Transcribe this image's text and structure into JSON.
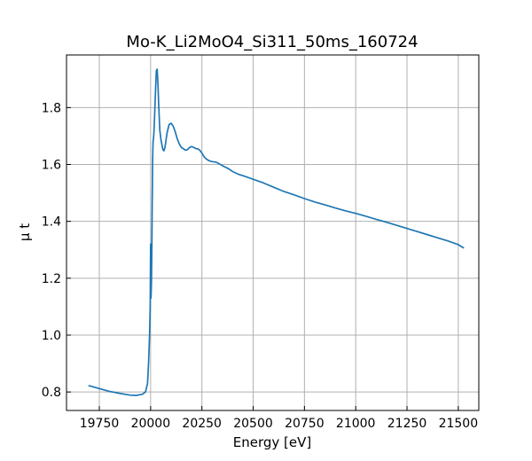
{
  "chart_data": {
    "type": "line",
    "title": "Mo-K_Li2MoO4_Si311_50ms_160724",
    "xlabel": "Energy [eV]",
    "ylabel": "μ t",
    "xlim": [
      19590,
      21600
    ],
    "ylim": [
      0.735,
      1.985
    ],
    "x_ticks": [
      19750,
      20000,
      20250,
      20500,
      20750,
      21000,
      21250,
      21500
    ],
    "x_tick_labels": [
      "19750",
      "20000",
      "20250",
      "20500",
      "20750",
      "21000",
      "21250",
      "21500"
    ],
    "y_ticks": [
      0.8,
      1.0,
      1.2,
      1.4,
      1.6,
      1.8
    ],
    "y_tick_labels": [
      "0.8",
      "1.0",
      "1.2",
      "1.4",
      "1.6",
      "1.8"
    ],
    "grid": true,
    "line_color": "#1f77b4",
    "series": [
      {
        "x": [
          19700,
          19750,
          19800,
          19850,
          19900,
          19930,
          19960,
          19975,
          19985,
          19990,
          19995,
          19998,
          20000,
          20002,
          20004,
          20006,
          20008,
          20010,
          20012,
          20014,
          20016,
          20018,
          20020,
          20024,
          20028,
          20032,
          20036,
          20040,
          20045,
          20050,
          20055,
          20060,
          20065,
          20070,
          20075,
          20080,
          20090,
          20100,
          20110,
          20120,
          20130,
          20140,
          20150,
          20160,
          20170,
          20180,
          20190,
          20200,
          20210,
          20220,
          20230,
          20240,
          20250,
          20260,
          20270,
          20280,
          20290,
          20300,
          20320,
          20340,
          20360,
          20380,
          20400,
          20430,
          20460,
          20500,
          20550,
          20600,
          20650,
          20700,
          20750,
          20800,
          20850,
          20900,
          20950,
          21000,
          21050,
          21100,
          21150,
          21200,
          21250,
          21300,
          21350,
          21400,
          21450,
          21500,
          21525
        ],
        "y": [
          0.822,
          0.812,
          0.802,
          0.795,
          0.789,
          0.788,
          0.792,
          0.8,
          0.83,
          0.9,
          1.0,
          1.1,
          1.32,
          1.13,
          1.18,
          1.3,
          1.48,
          1.62,
          1.68,
          1.69,
          1.71,
          1.74,
          1.78,
          1.86,
          1.93,
          1.935,
          1.88,
          1.8,
          1.72,
          1.69,
          1.67,
          1.652,
          1.648,
          1.66,
          1.685,
          1.71,
          1.74,
          1.745,
          1.735,
          1.715,
          1.69,
          1.672,
          1.66,
          1.655,
          1.65,
          1.652,
          1.66,
          1.663,
          1.66,
          1.656,
          1.655,
          1.65,
          1.64,
          1.628,
          1.62,
          1.615,
          1.612,
          1.61,
          1.608,
          1.6,
          1.592,
          1.585,
          1.575,
          1.565,
          1.558,
          1.548,
          1.535,
          1.52,
          1.505,
          1.493,
          1.48,
          1.468,
          1.458,
          1.447,
          1.437,
          1.428,
          1.418,
          1.407,
          1.397,
          1.386,
          1.375,
          1.364,
          1.353,
          1.342,
          1.331,
          1.318,
          1.307
        ]
      }
    ]
  }
}
